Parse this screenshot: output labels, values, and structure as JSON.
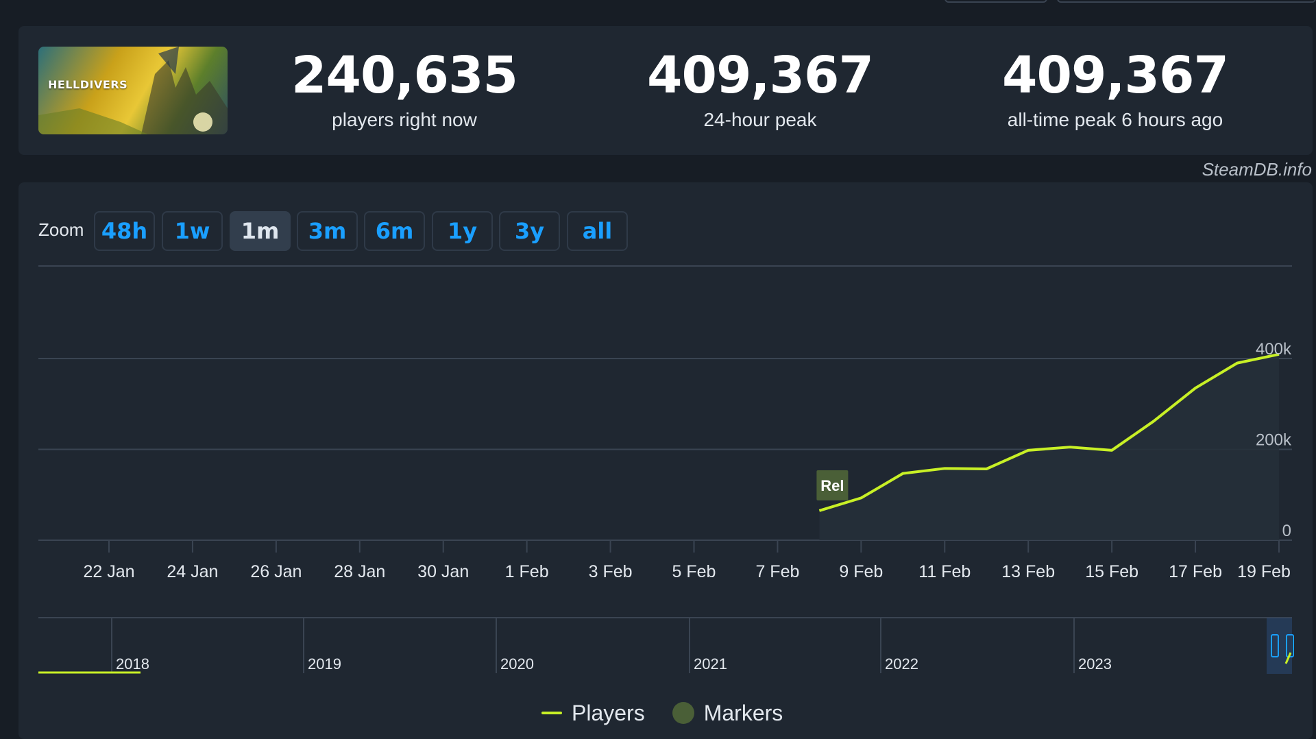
{
  "stats": {
    "current": {
      "value": "240,635",
      "label": "players right now"
    },
    "peak_24h": {
      "value": "409,367",
      "label": "24-hour peak"
    },
    "all_time": {
      "value": "409,367",
      "label": "all-time peak 6 hours ago"
    }
  },
  "game": {
    "cover_text": "HELLDIVERS"
  },
  "credit": "SteamDB.info",
  "zoom": {
    "label": "Zoom",
    "buttons": [
      "48h",
      "1w",
      "1m",
      "3m",
      "6m",
      "1y",
      "3y",
      "all"
    ],
    "active": "1m"
  },
  "legend": {
    "players": "Players",
    "markers": "Markers"
  },
  "colors": {
    "series": "#c8f026",
    "accent": "#1a9fff",
    "panel": "#1f2731",
    "background": "#171d25",
    "marker": "#4a5f37"
  },
  "chart_data": {
    "type": "line",
    "series": [
      {
        "name": "Players",
        "x": [
          "8 Feb",
          "9 Feb",
          "10 Feb",
          "11 Feb",
          "12 Feb",
          "13 Feb",
          "14 Feb",
          "15 Feb",
          "16 Feb",
          "17 Feb",
          "18 Feb",
          "19 Feb"
        ],
        "x_day_index": [
          18,
          19,
          20,
          21,
          22,
          23,
          24,
          25,
          26,
          27,
          28,
          29
        ],
        "values": [
          65000,
          93000,
          147000,
          158000,
          157000,
          198000,
          205000,
          198000,
          262000,
          335000,
          390000,
          409367
        ]
      }
    ],
    "x_ticks": [
      "22 Jan",
      "24 Jan",
      "26 Jan",
      "28 Jan",
      "30 Jan",
      "1 Feb",
      "3 Feb",
      "5 Feb",
      "7 Feb",
      "9 Feb",
      "11 Feb",
      "13 Feb",
      "15 Feb",
      "17 Feb",
      "19 Feb"
    ],
    "x_tick_day_index": [
      1,
      3,
      5,
      7,
      9,
      11,
      13,
      15,
      17,
      19,
      21,
      23,
      25,
      27,
      29
    ],
    "y_ticks": [
      "0",
      "200k",
      "400k"
    ],
    "y_tick_values": [
      0,
      200000,
      400000
    ],
    "ylim": [
      0,
      580000
    ],
    "xlim_day_index": [
      -0.7,
      29
    ],
    "markers": [
      {
        "label": "Rel",
        "x": "8 Feb",
        "x_day_index": 18
      }
    ],
    "navigator": {
      "years": [
        "2018",
        "2019",
        "2020",
        "2021",
        "2022",
        "2023"
      ]
    },
    "grid": true,
    "legend_position": "bottom-center"
  }
}
